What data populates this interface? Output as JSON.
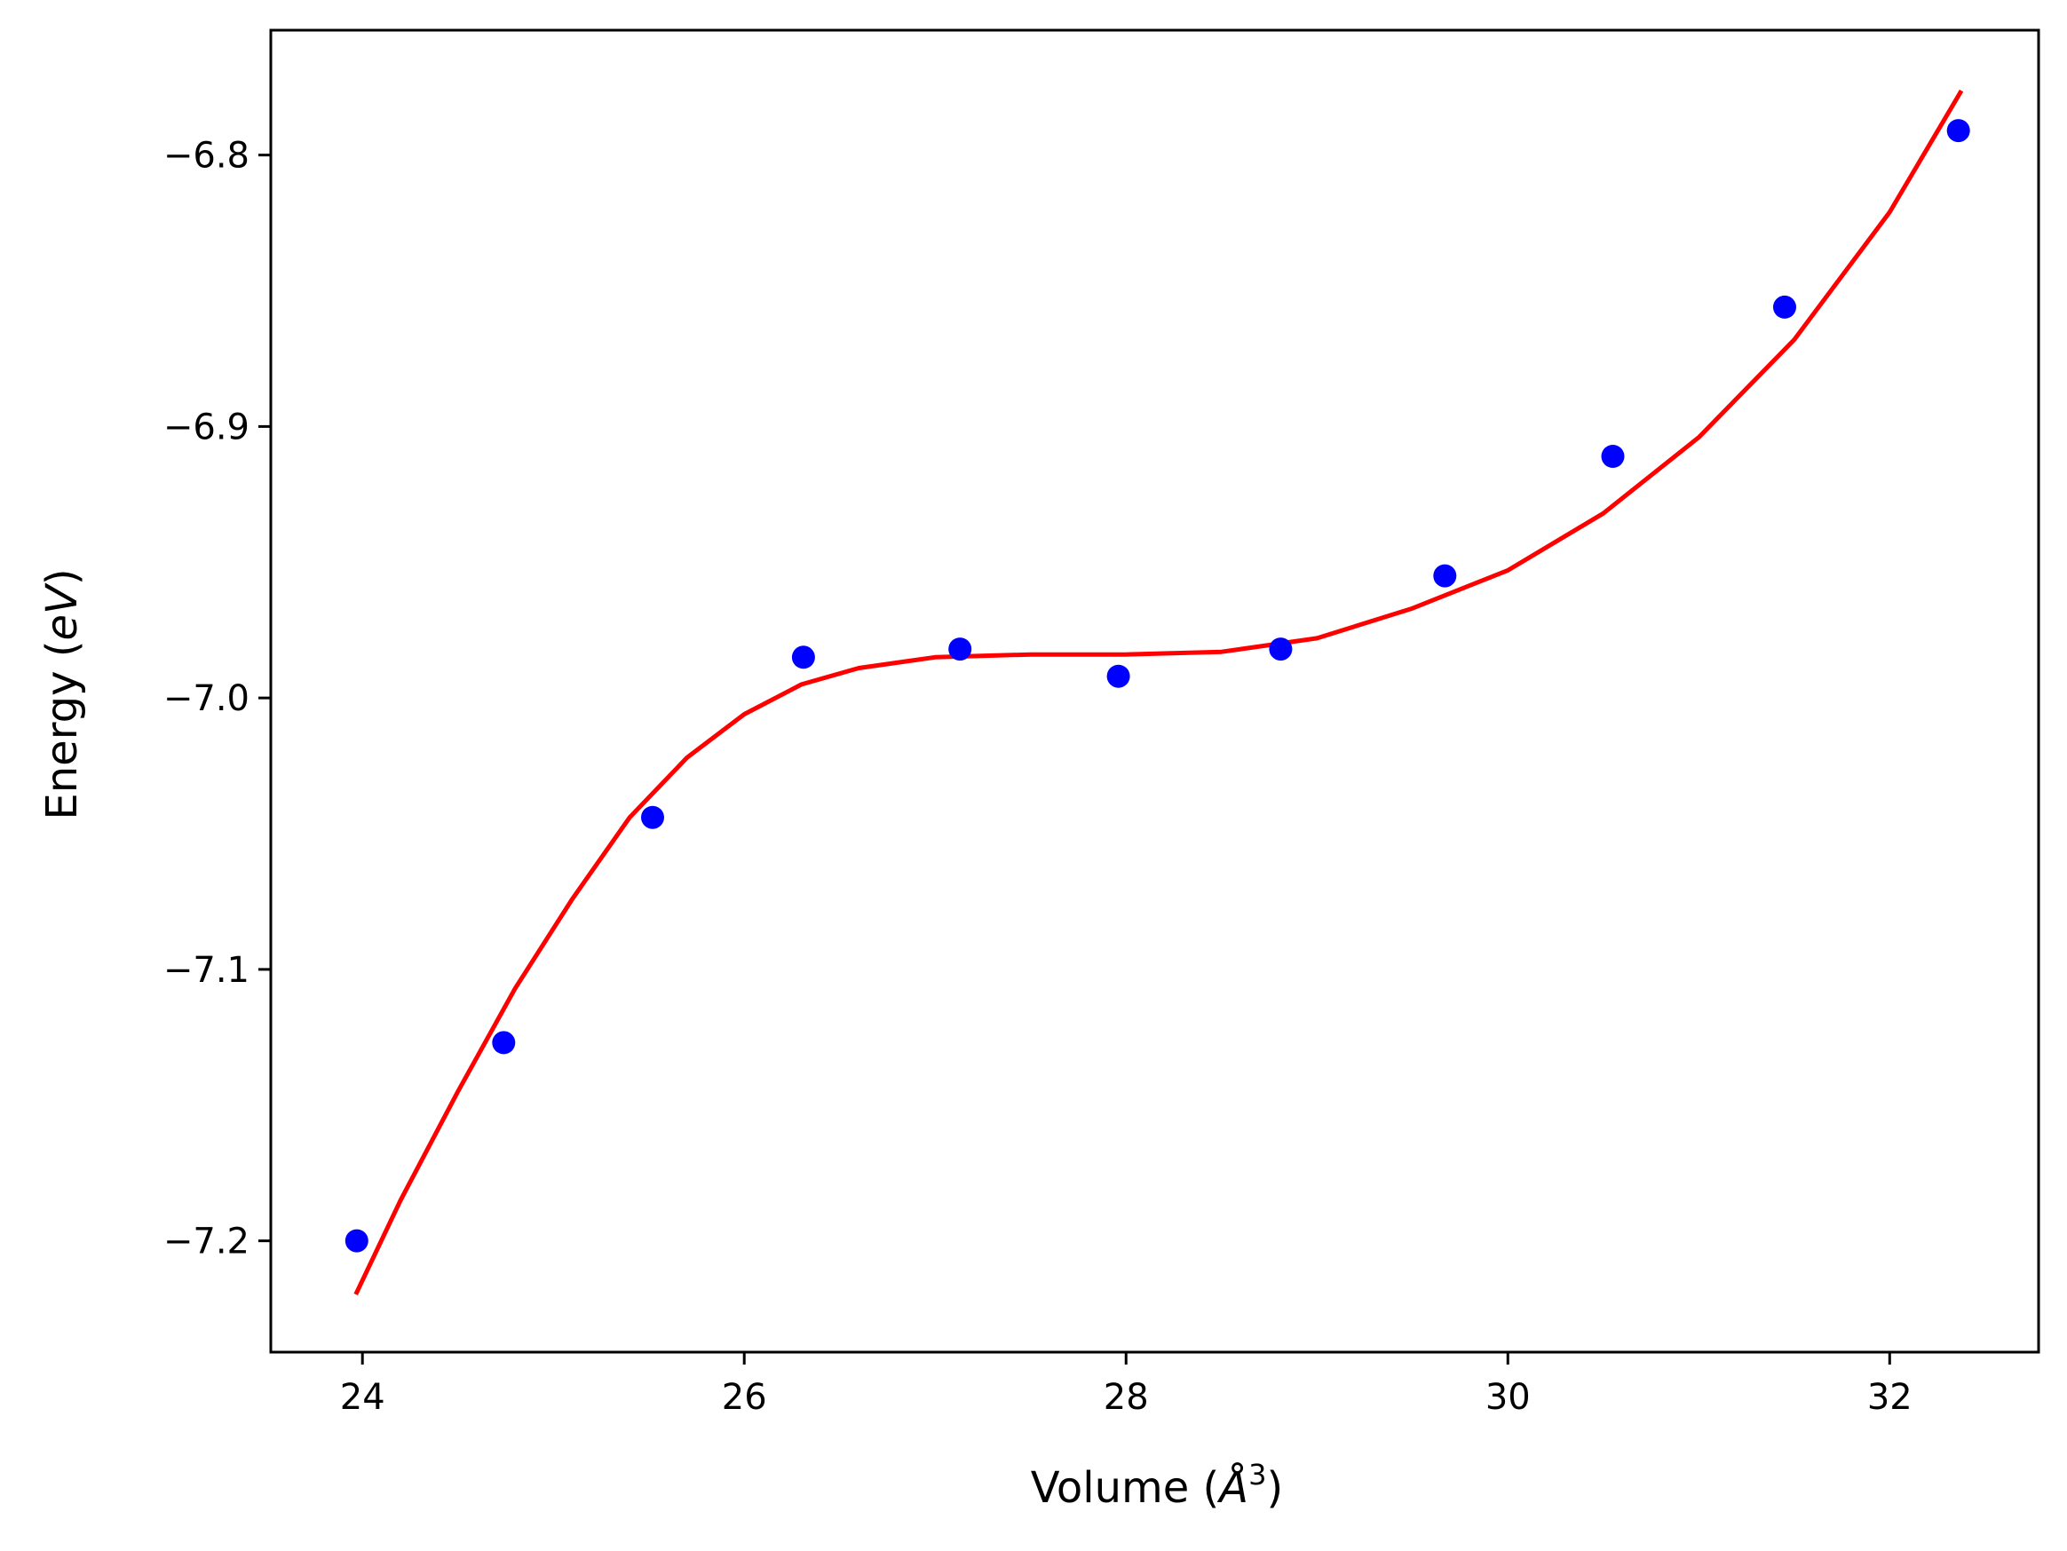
{
  "chart_data": {
    "type": "scatter",
    "xlabel": {
      "prefix": "Volume (",
      "unit": "Å",
      "exponent": "3",
      "suffix": ")"
    },
    "ylabel": {
      "prefix": "Energy (",
      "unit": "eV",
      "suffix": ")"
    },
    "xlim": [
      23.52,
      32.78
    ],
    "ylim": [
      -7.241,
      -6.754
    ],
    "xticks": [
      {
        "value": 24,
        "label": "24"
      },
      {
        "value": 26,
        "label": "26"
      },
      {
        "value": 28,
        "label": "28"
      },
      {
        "value": 30,
        "label": "30"
      },
      {
        "value": 32,
        "label": "32"
      }
    ],
    "yticks": [
      {
        "value": -7.2,
        "label": "−7.2"
      },
      {
        "value": -7.1,
        "label": "−7.1"
      },
      {
        "value": -7.0,
        "label": "−7.0"
      },
      {
        "value": -6.9,
        "label": "−6.9"
      },
      {
        "value": -6.8,
        "label": "−6.8"
      }
    ],
    "grid": false,
    "legend": "none",
    "series": [
      {
        "kind": "points",
        "color": "#0000ff",
        "x": [
          23.97,
          24.74,
          25.52,
          26.31,
          27.13,
          27.96,
          28.81,
          29.67,
          30.55,
          31.45,
          32.36
        ],
        "y": [
          -7.2,
          -7.127,
          -7.044,
          -6.985,
          -6.982,
          -6.992,
          -6.982,
          -6.955,
          -6.911,
          -6.856,
          -6.791
        ]
      },
      {
        "kind": "fit-line",
        "color": "#ff0000",
        "x": [
          23.97,
          24.2,
          24.5,
          24.8,
          25.1,
          25.4,
          25.7,
          26.0,
          26.3,
          26.6,
          27.0,
          27.5,
          28.0,
          28.5,
          29.0,
          29.5,
          30.0,
          30.5,
          31.0,
          31.5,
          32.0,
          32.37
        ],
        "y": [
          -7.219,
          -7.185,
          -7.145,
          -7.107,
          -7.074,
          -7.044,
          -7.022,
          -7.006,
          -6.995,
          -6.989,
          -6.985,
          -6.984,
          -6.984,
          -6.983,
          -6.978,
          -6.967,
          -6.953,
          -6.932,
          -6.904,
          -6.868,
          -6.821,
          -6.777
        ]
      }
    ]
  }
}
